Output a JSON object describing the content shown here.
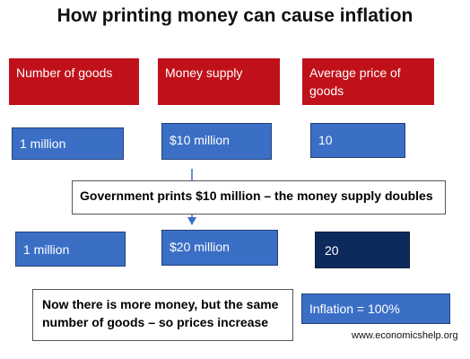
{
  "title": "How printing money can cause inflation",
  "headers": [
    "Number of goods",
    "Money supply",
    "Average price of goods"
  ],
  "rows": [
    [
      "1 million",
      "$10 million",
      "10"
    ],
    [
      "1 million",
      "$20 million",
      "20"
    ]
  ],
  "note": "Government prints $10 million – the money supply doubles",
  "explanation": "Now there is more money, but the same number of goods – so prices increase",
  "result": "Inflation = 100%",
  "footer": "www.economicshelp.org"
}
